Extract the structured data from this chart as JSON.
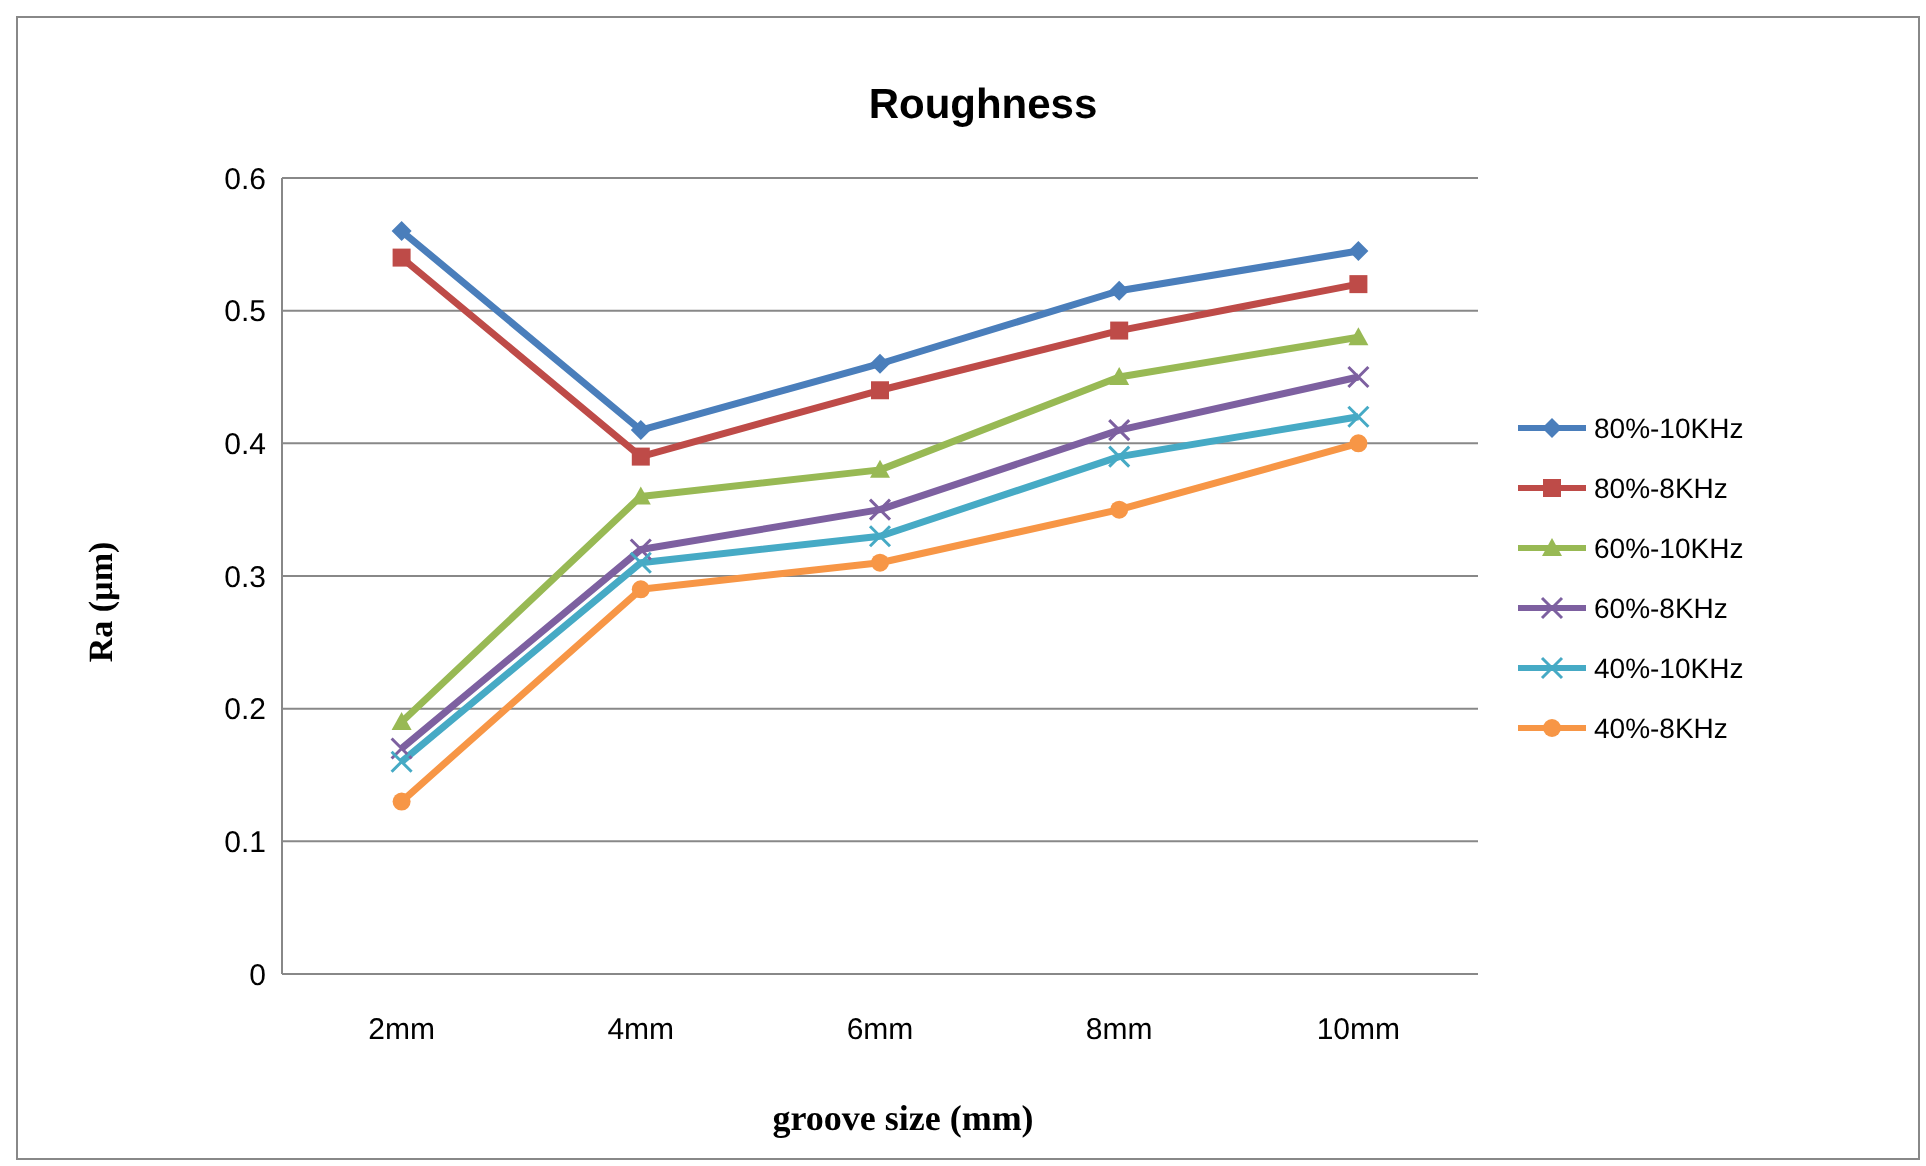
{
  "chart_data": {
    "type": "line",
    "title": "Roughness",
    "xlabel": "groove size  (mm)",
    "ylabel": "Ra (µm)",
    "categories": [
      "2mm",
      "4mm",
      "6mm",
      "8mm",
      "10mm"
    ],
    "series": [
      {
        "name": "80%-10KHz",
        "color": "#4a7ebb",
        "marker": "diamond",
        "values": [
          0.56,
          0.41,
          0.46,
          0.515,
          0.545
        ]
      },
      {
        "name": "80%-8KHz",
        "color": "#be4b48",
        "marker": "square",
        "values": [
          0.54,
          0.39,
          0.44,
          0.485,
          0.52
        ]
      },
      {
        "name": "60%-10KHz",
        "color": "#98b954",
        "marker": "triangle",
        "values": [
          0.19,
          0.36,
          0.38,
          0.45,
          0.48
        ]
      },
      {
        "name": "60%-8KHz",
        "color": "#7d60a0",
        "marker": "cross",
        "values": [
          0.17,
          0.32,
          0.35,
          0.41,
          0.45
        ]
      },
      {
        "name": "40%-10KHz",
        "color": "#46aac5",
        "marker": "cross",
        "values": [
          0.16,
          0.31,
          0.33,
          0.39,
          0.42
        ]
      },
      {
        "name": "40%-8KHz",
        "color": "#f79646",
        "marker": "circle",
        "values": [
          0.13,
          0.29,
          0.31,
          0.35,
          0.4
        ]
      }
    ],
    "ylim": [
      0,
      0.6
    ],
    "yticks": [
      0,
      0.1,
      0.2,
      0.3,
      0.4,
      0.5,
      0.6
    ],
    "grid": "y",
    "legend": "right"
  }
}
